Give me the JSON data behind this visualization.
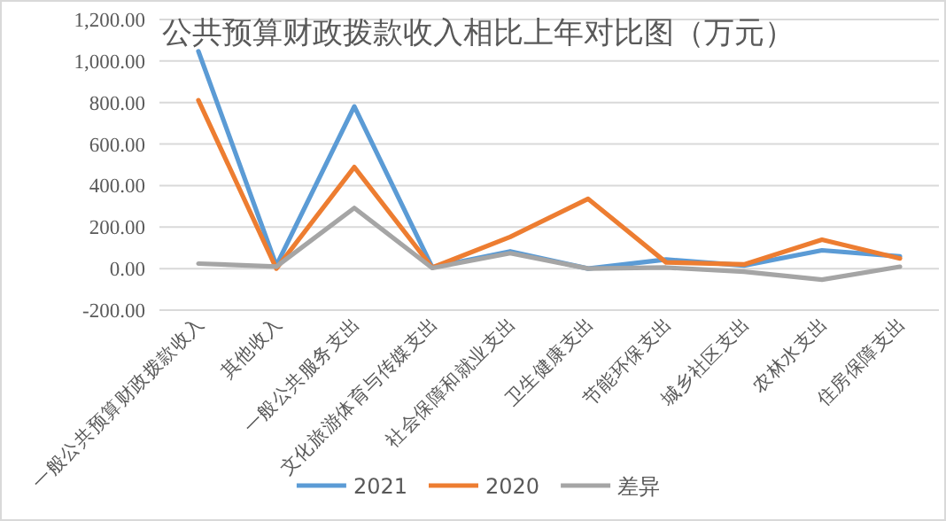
{
  "chart_data": {
    "type": "line",
    "title": "公共预算财政拨款收入相比上年对比图（万元）",
    "categories": [
      "一般公共预算财政拨款收入",
      "其他收入",
      "一般公共服务支出",
      "文化旅游体育与传媒支出",
      "社会保障和就业支出",
      "卫生健康支出",
      "节能环保支出",
      "城乡社区支出",
      "农林水支出",
      "住房保障支出"
    ],
    "series": [
      {
        "name": "2021",
        "color": "#5b9bd5",
        "values": [
          1047,
          15,
          781,
          6,
          83,
          0,
          44,
          15,
          88,
          59
        ]
      },
      {
        "name": "2020",
        "color": "#ed7d31",
        "values": [
          811,
          0,
          489,
          5,
          153,
          336,
          30,
          20,
          139,
          49
        ]
      },
      {
        "name": "差异",
        "color": "#a5a5a5",
        "values": [
          24,
          10,
          292,
          3,
          74,
          0,
          5,
          -15,
          -53,
          9
        ]
      }
    ],
    "ylim": [
      -200,
      1200
    ],
    "yticks": [
      {
        "value": -200,
        "label": "-200.00"
      },
      {
        "value": 0,
        "label": "0.00"
      },
      {
        "value": 200,
        "label": "200.00"
      },
      {
        "value": 400,
        "label": "400.00"
      },
      {
        "value": 600,
        "label": "600.00"
      },
      {
        "value": 800,
        "label": "800.00"
      },
      {
        "value": 1000,
        "label": "1,000.00"
      },
      {
        "value": 1200,
        "label": "1,200.00"
      }
    ],
    "grid": "y",
    "legend": "bottom",
    "marker": "none",
    "line_style": "solid"
  }
}
